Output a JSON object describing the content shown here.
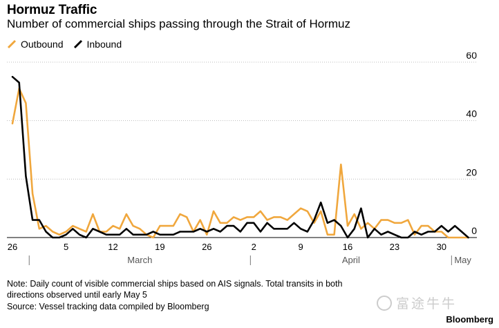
{
  "title": "Hormuz Traffic",
  "subtitle": "Number of commercial ships passing through the Strait of Hormuz",
  "note": "Note: Daily count of visible commercial ships based on AIS signals. Total transits in both directions observed until early May 5",
  "source": "Source: Vessel tracking data compiled by Bloomberg",
  "watermark": "富途牛牛",
  "brand": "Bloomberg",
  "chart_data": {
    "type": "line",
    "x": [
      "Feb 26",
      "Feb 27",
      "Feb 28",
      "Mar 1",
      "Mar 2",
      "Mar 3",
      "Mar 4",
      "Mar 5",
      "Mar 6",
      "Mar 7",
      "Mar 8",
      "Mar 9",
      "Mar 10",
      "Mar 11",
      "Mar 12",
      "Mar 13",
      "Mar 14",
      "Mar 15",
      "Mar 16",
      "Mar 17",
      "Mar 18",
      "Mar 19",
      "Mar 20",
      "Mar 21",
      "Mar 22",
      "Mar 23",
      "Mar 24",
      "Mar 25",
      "Mar 26",
      "Mar 27",
      "Mar 28",
      "Mar 29",
      "Mar 30",
      "Mar 31",
      "Apr 1",
      "Apr 2",
      "Apr 3",
      "Apr 4",
      "Apr 5",
      "Apr 6",
      "Apr 7",
      "Apr 8",
      "Apr 9",
      "Apr 10",
      "Apr 11",
      "Apr 12",
      "Apr 13",
      "Apr 14",
      "Apr 15",
      "Apr 16",
      "Apr 17",
      "Apr 18",
      "Apr 19",
      "Apr 20",
      "Apr 21",
      "Apr 22",
      "Apr 23",
      "Apr 24",
      "Apr 25",
      "Apr 26",
      "Apr 27",
      "Apr 28",
      "Apr 29",
      "Apr 30",
      "May 1",
      "May 2",
      "May 3",
      "May 4",
      "May 5"
    ],
    "series": [
      {
        "name": "Outbound",
        "color": "#f0a73d",
        "values": [
          39,
          51,
          46,
          15,
          3,
          4,
          2,
          1,
          2,
          4,
          3,
          2,
          8,
          2,
          2,
          4,
          3,
          8,
          4,
          3,
          1,
          0,
          4,
          4,
          4,
          8,
          7,
          2,
          6,
          1,
          9,
          5,
          5,
          7,
          6,
          7,
          7,
          9,
          6,
          7,
          7,
          6,
          8,
          10,
          9,
          5,
          9,
          1,
          1,
          25,
          4,
          8,
          3,
          5,
          3,
          6,
          6,
          5,
          5,
          6,
          1,
          4,
          4,
          2,
          2,
          0,
          0,
          0,
          0
        ]
      },
      {
        "name": "Inbound",
        "color": "#000000",
        "values": [
          55,
          53,
          21,
          6,
          6,
          2,
          0,
          0,
          1,
          3,
          1,
          0,
          3,
          2,
          1,
          1,
          1,
          3,
          1,
          1,
          1,
          2,
          1,
          1,
          1,
          2,
          2,
          2,
          3,
          2,
          3,
          2,
          4,
          4,
          2,
          5,
          5,
          2,
          5,
          3,
          3,
          3,
          5,
          3,
          2,
          6,
          12,
          5,
          6,
          4,
          0,
          3,
          10,
          0,
          3,
          1,
          2,
          1,
          0,
          0,
          2,
          1,
          2,
          2,
          4,
          2,
          4,
          2,
          0
        ]
      }
    ],
    "ylim": [
      0,
      60
    ],
    "yticks": [
      0,
      20,
      40,
      60
    ],
    "xticks": [
      {
        "label": "26",
        "index": 0
      },
      {
        "label": "5",
        "index": 8
      },
      {
        "label": "12",
        "index": 15
      },
      {
        "label": "19",
        "index": 22
      },
      {
        "label": "26",
        "index": 29
      },
      {
        "label": "2",
        "index": 36
      },
      {
        "label": "9",
        "index": 43
      },
      {
        "label": "16",
        "index": 50
      },
      {
        "label": "23",
        "index": 57
      },
      {
        "label": "30",
        "index": 64
      }
    ],
    "month_labels": [
      {
        "label": "March",
        "start": 3,
        "end": 36
      },
      {
        "label": "April",
        "start": 36,
        "end": 66
      },
      {
        "label": "May",
        "start": 66,
        "end": 69
      }
    ],
    "legend_position": "top-left",
    "grid": "horizontal dotted"
  }
}
